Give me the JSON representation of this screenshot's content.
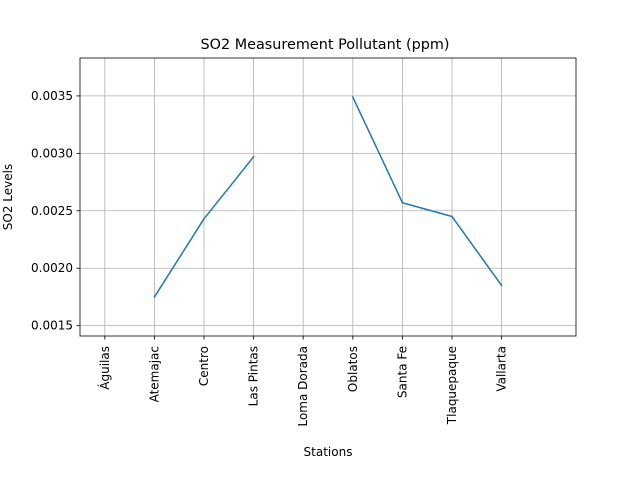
{
  "chart_data": {
    "type": "line",
    "title": "SO2 Measurement Pollutant (ppm)",
    "xlabel": "Stations",
    "ylabel": "SO2 Levels",
    "categories": [
      "Águilas",
      "Atemajac",
      "Centro",
      "Las Pintas",
      "Loma Dorada",
      "Oblatos",
      "Santa Fe",
      "Tlaquepaque",
      "Vallarta"
    ],
    "series": [
      {
        "values": [
          null,
          0.00175,
          0.00243,
          0.00297,
          null,
          0.00349,
          0.00257,
          0.00245,
          0.00185
        ],
        "color": "#1f77b4"
      }
    ],
    "yticks": [
      0.0015,
      0.002,
      0.0025,
      0.003,
      0.0035
    ],
    "ytick_labels": [
      "0.0015",
      "0.0020",
      "0.0025",
      "0.0030",
      "0.0035"
    ],
    "ylim": [
      0.00141,
      0.00383
    ],
    "xlim": [
      -0.5,
      9.5
    ],
    "grid": true
  }
}
